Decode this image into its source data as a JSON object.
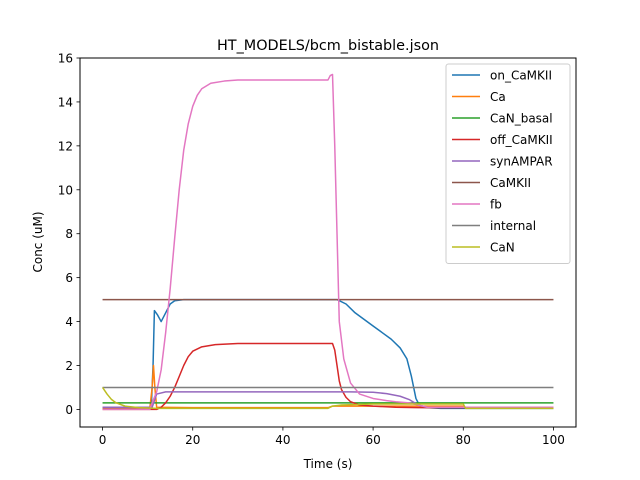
{
  "chart_data": {
    "type": "line",
    "title": "HT_MODELS/bcm_bistable.json",
    "xlabel": "Time (s)",
    "ylabel": "Conc (uM)",
    "xlim": [
      -5,
      105
    ],
    "ylim": [
      -0.8,
      16
    ],
    "xticks": [
      0,
      20,
      40,
      60,
      80,
      100
    ],
    "yticks": [
      0,
      2,
      4,
      6,
      8,
      10,
      12,
      14,
      16
    ],
    "grid": false,
    "legend_position": "top-right",
    "series": [
      {
        "name": "on_CaMKII",
        "color": "#1f77b4",
        "points": [
          [
            0,
            0.05
          ],
          [
            10.8,
            0.05
          ],
          [
            11.2,
            2.0
          ],
          [
            11.5,
            4.5
          ],
          [
            12.2,
            4.3
          ],
          [
            13,
            4.0
          ],
          [
            14,
            4.4
          ],
          [
            15,
            4.8
          ],
          [
            16,
            4.95
          ],
          [
            18,
            5.0
          ],
          [
            30,
            5.0
          ],
          [
            40,
            5.0
          ],
          [
            50,
            5.0
          ],
          [
            52,
            5.0
          ],
          [
            54,
            4.8
          ],
          [
            56,
            4.4
          ],
          [
            58,
            4.1
          ],
          [
            60,
            3.8
          ],
          [
            62,
            3.5
          ],
          [
            64,
            3.2
          ],
          [
            66,
            2.8
          ],
          [
            67.5,
            2.3
          ],
          [
            68.5,
            1.5
          ],
          [
            69.5,
            0.5
          ],
          [
            70.5,
            0.1
          ],
          [
            75,
            0.05
          ],
          [
            100,
            0.05
          ]
        ]
      },
      {
        "name": "Ca",
        "color": "#ff7f0e",
        "points": [
          [
            0,
            0.08
          ],
          [
            10.5,
            0.08
          ],
          [
            11,
            1.0
          ],
          [
            11.3,
            2.0
          ],
          [
            11.6,
            1.0
          ],
          [
            12,
            0.1
          ],
          [
            20,
            0.08
          ],
          [
            50,
            0.08
          ],
          [
            51,
            0.15
          ],
          [
            60,
            0.15
          ],
          [
            80,
            0.15
          ],
          [
            80.5,
            0.08
          ],
          [
            100,
            0.08
          ]
        ]
      },
      {
        "name": "CaN_basal",
        "color": "#2ca02c",
        "points": [
          [
            0,
            0.3
          ],
          [
            100,
            0.3
          ]
        ]
      },
      {
        "name": "off_CaMKII",
        "color": "#d62728",
        "points": [
          [
            0,
            0.0
          ],
          [
            12,
            0.0
          ],
          [
            13,
            0.1
          ],
          [
            14,
            0.3
          ],
          [
            15,
            0.6
          ],
          [
            16,
            1.0
          ],
          [
            17,
            1.5
          ],
          [
            18,
            2.0
          ],
          [
            19,
            2.4
          ],
          [
            20,
            2.65
          ],
          [
            22,
            2.85
          ],
          [
            25,
            2.95
          ],
          [
            30,
            3.0
          ],
          [
            40,
            3.0
          ],
          [
            51,
            3.0
          ],
          [
            51.5,
            2.7
          ],
          [
            52,
            2.0
          ],
          [
            52.5,
            1.3
          ],
          [
            53,
            0.9
          ],
          [
            54,
            0.55
          ],
          [
            55,
            0.35
          ],
          [
            57,
            0.2
          ],
          [
            60,
            0.15
          ],
          [
            65,
            0.1
          ],
          [
            70,
            0.08
          ],
          [
            100,
            0.08
          ]
        ]
      },
      {
        "name": "synAMPAR",
        "color": "#9467bd",
        "points": [
          [
            0,
            0.1
          ],
          [
            11,
            0.1
          ],
          [
            12,
            0.7
          ],
          [
            14,
            0.8
          ],
          [
            20,
            0.8
          ],
          [
            50,
            0.8
          ],
          [
            52,
            0.8
          ],
          [
            55,
            0.8
          ],
          [
            60,
            0.78
          ],
          [
            63,
            0.72
          ],
          [
            66,
            0.6
          ],
          [
            68,
            0.45
          ],
          [
            70,
            0.2
          ],
          [
            72,
            0.1
          ],
          [
            100,
            0.1
          ]
        ]
      },
      {
        "name": "CaMKII",
        "color": "#8c564b",
        "points": [
          [
            0,
            5.0
          ],
          [
            100,
            5.0
          ]
        ]
      },
      {
        "name": "fb",
        "color": "#e377c2",
        "points": [
          [
            0,
            0.0
          ],
          [
            10.5,
            0.0
          ],
          [
            11,
            0.3
          ],
          [
            12,
            0.8
          ],
          [
            13,
            1.8
          ],
          [
            14,
            3.5
          ],
          [
            15,
            5.5
          ],
          [
            16,
            7.8
          ],
          [
            17,
            10.0
          ],
          [
            18,
            11.8
          ],
          [
            19,
            13.0
          ],
          [
            20,
            13.8
          ],
          [
            21,
            14.3
          ],
          [
            22,
            14.6
          ],
          [
            24,
            14.85
          ],
          [
            27,
            14.95
          ],
          [
            30,
            15.0
          ],
          [
            40,
            15.0
          ],
          [
            50,
            15.0
          ],
          [
            50.5,
            15.2
          ],
          [
            51,
            15.25
          ],
          [
            51.5,
            12.0
          ],
          [
            52,
            8.0
          ],
          [
            52.5,
            4.0
          ],
          [
            53.5,
            2.3
          ],
          [
            55,
            1.2
          ],
          [
            57,
            0.7
          ],
          [
            60,
            0.5
          ],
          [
            63,
            0.4
          ],
          [
            65,
            0.35
          ],
          [
            68,
            0.3
          ],
          [
            70,
            0.2
          ],
          [
            72,
            0.1
          ],
          [
            100,
            0.1
          ]
        ]
      },
      {
        "name": "internal",
        "color": "#7f7f7f",
        "points": [
          [
            0,
            1.0
          ],
          [
            100,
            1.0
          ]
        ]
      },
      {
        "name": "CaN",
        "color": "#bcbd22",
        "points": [
          [
            0,
            1.0
          ],
          [
            1,
            0.7
          ],
          [
            2,
            0.45
          ],
          [
            3,
            0.3
          ],
          [
            5,
            0.15
          ],
          [
            8,
            0.08
          ],
          [
            12,
            0.05
          ],
          [
            30,
            0.05
          ],
          [
            50,
            0.05
          ],
          [
            51,
            0.15
          ],
          [
            53,
            0.2
          ],
          [
            60,
            0.25
          ],
          [
            80,
            0.25
          ],
          [
            80.5,
            0.05
          ],
          [
            100,
            0.05
          ]
        ]
      }
    ]
  }
}
